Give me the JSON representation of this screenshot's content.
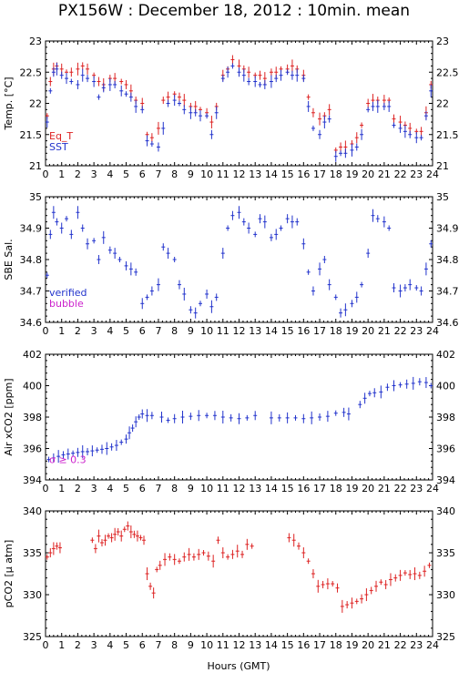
{
  "title": "PX156W : December 18, 2012 : 10min. mean",
  "xlabel": "Hours (GMT)",
  "colors": {
    "red": "#dd2222",
    "blue": "#2233cc",
    "magenta": "#cc22cc",
    "frame": "#000000"
  },
  "chart_data": [
    {
      "type": "scatter",
      "ylabel": "Temp. [°C]",
      "xlim": [
        0,
        24
      ],
      "ylim": [
        21,
        23
      ],
      "yticks": [
        21,
        21.5,
        22,
        22.5,
        23
      ],
      "ytick_labels": [
        "21",
        "21.5",
        "22",
        "22.5",
        "23"
      ],
      "xticks": [
        0,
        1,
        2,
        3,
        4,
        5,
        6,
        7,
        8,
        9,
        10,
        11,
        12,
        13,
        14,
        15,
        16,
        17,
        18,
        19,
        20,
        21,
        22,
        23,
        24
      ],
      "legend": {
        "placement": "bottom-left",
        "entries": [
          "Eq_T",
          "SST"
        ]
      },
      "series": [
        {
          "name": "Eq_T",
          "color": "red",
          "x": [
            0.1,
            0.3,
            0.5,
            0.7,
            1.0,
            1.3,
            1.6,
            2.0,
            2.3,
            2.6,
            3.0,
            3.3,
            3.6,
            4.0,
            4.3,
            4.7,
            5.0,
            5.3,
            5.6,
            6.0,
            6.3,
            6.6,
            7.0,
            7.3,
            7.6,
            8.0,
            8.3,
            8.6,
            9.0,
            9.3,
            9.6,
            10.0,
            10.3,
            10.6,
            11.0,
            11.3,
            11.6,
            12.0,
            12.3,
            12.6,
            13.0,
            13.3,
            13.6,
            14.0,
            14.3,
            14.6,
            15.0,
            15.3,
            15.6,
            16.0,
            16.3,
            16.6,
            17.0,
            17.3,
            17.6,
            18.0,
            18.3,
            18.6,
            19.0,
            19.3,
            19.6,
            20.0,
            20.3,
            20.6,
            21.0,
            21.3,
            21.6,
            22.0,
            22.3,
            22.6,
            23.0,
            23.3,
            23.6,
            23.9
          ],
          "y": [
            21.8,
            22.35,
            22.55,
            22.6,
            22.55,
            22.5,
            22.5,
            22.55,
            22.6,
            22.55,
            22.45,
            22.35,
            22.3,
            22.4,
            22.4,
            22.35,
            22.3,
            22.2,
            22.05,
            22.0,
            21.5,
            21.45,
            21.6,
            22.05,
            22.1,
            22.15,
            22.1,
            22.05,
            21.95,
            21.95,
            21.9,
            21.85,
            21.7,
            21.95,
            22.45,
            22.55,
            22.7,
            22.6,
            22.55,
            22.5,
            22.45,
            22.45,
            22.4,
            22.5,
            22.5,
            22.55,
            22.55,
            22.6,
            22.55,
            22.45,
            22.1,
            21.85,
            21.75,
            21.8,
            21.9,
            21.25,
            21.3,
            21.3,
            21.35,
            21.45,
            21.65,
            22.0,
            22.05,
            22.05,
            22.05,
            22.05,
            21.75,
            21.7,
            21.65,
            21.6,
            21.55,
            21.55,
            21.85,
            22.3
          ]
        },
        {
          "name": "SST",
          "color": "blue",
          "x": [
            0.1,
            0.3,
            0.5,
            0.7,
            1.0,
            1.3,
            1.6,
            2.0,
            2.3,
            2.6,
            3.0,
            3.3,
            3.6,
            4.0,
            4.3,
            4.7,
            5.0,
            5.3,
            5.6,
            6.0,
            6.3,
            6.6,
            7.0,
            7.3,
            7.6,
            8.0,
            8.3,
            8.6,
            9.0,
            9.3,
            9.6,
            10.0,
            10.3,
            10.6,
            11.0,
            11.3,
            11.6,
            12.0,
            12.3,
            12.6,
            13.0,
            13.3,
            13.6,
            14.0,
            14.3,
            14.6,
            15.0,
            15.3,
            15.6,
            16.0,
            16.3,
            16.6,
            17.0,
            17.3,
            17.6,
            18.0,
            18.3,
            18.6,
            19.0,
            19.3,
            19.6,
            20.0,
            20.3,
            20.6,
            21.0,
            21.3,
            21.6,
            22.0,
            22.3,
            22.6,
            23.0,
            23.3,
            23.6,
            23.9
          ],
          "y": [
            21.7,
            22.2,
            22.5,
            22.55,
            22.45,
            22.4,
            22.35,
            22.3,
            22.45,
            22.4,
            22.35,
            22.1,
            22.25,
            22.3,
            22.3,
            22.2,
            22.15,
            22.1,
            21.95,
            21.9,
            21.4,
            21.35,
            21.3,
            21.6,
            22.0,
            22.05,
            22.0,
            21.9,
            21.85,
            21.85,
            21.8,
            21.8,
            21.5,
            21.85,
            22.4,
            22.5,
            22.6,
            22.5,
            22.45,
            22.35,
            22.35,
            22.3,
            22.3,
            22.35,
            22.4,
            22.45,
            22.5,
            22.45,
            22.45,
            22.4,
            21.95,
            21.6,
            21.5,
            21.7,
            21.75,
            21.15,
            21.2,
            21.2,
            21.25,
            21.3,
            21.5,
            21.9,
            21.95,
            21.95,
            21.95,
            21.95,
            21.65,
            21.6,
            21.55,
            21.5,
            21.45,
            21.45,
            21.8,
            22.2
          ]
        }
      ]
    },
    {
      "type": "scatter",
      "ylabel": "SBE Sal.",
      "xlim": [
        0,
        24
      ],
      "ylim": [
        34.6,
        35
      ],
      "yticks": [
        34.6,
        34.7,
        34.8,
        34.9,
        35
      ],
      "ytick_labels": [
        "34.6",
        "34.7",
        "34.8",
        "34.9",
        "35"
      ],
      "xticks": [
        0,
        1,
        2,
        3,
        4,
        5,
        6,
        7,
        8,
        9,
        10,
        11,
        12,
        13,
        14,
        15,
        16,
        17,
        18,
        19,
        20,
        21,
        22,
        23,
        24
      ],
      "legend": {
        "placement": "bottom-left",
        "entries": [
          "verified",
          "bubble"
        ]
      },
      "series": [
        {
          "name": "verified",
          "color": "blue",
          "x": [
            0.1,
            0.3,
            0.5,
            0.7,
            1.0,
            1.3,
            1.6,
            2.0,
            2.3,
            2.6,
            3.0,
            3.3,
            3.6,
            4.0,
            4.3,
            4.6,
            5.0,
            5.3,
            5.6,
            6.0,
            6.3,
            6.6,
            7.0,
            7.3,
            7.6,
            8.0,
            8.3,
            8.6,
            9.0,
            9.3,
            9.6,
            10.0,
            10.3,
            10.6,
            11.0,
            11.3,
            11.6,
            12.0,
            12.3,
            12.6,
            13.0,
            13.3,
            13.6,
            14.0,
            14.3,
            14.6,
            15.0,
            15.3,
            15.6,
            16.0,
            16.3,
            16.6,
            17.0,
            17.3,
            17.6,
            18.0,
            18.3,
            18.6,
            19.0,
            19.3,
            19.6,
            20.0,
            20.3,
            20.6,
            21.0,
            21.3,
            21.6,
            22.0,
            22.3,
            22.6,
            23.0,
            23.3,
            23.6,
            23.9
          ],
          "y": [
            34.75,
            34.88,
            34.95,
            34.92,
            34.9,
            34.93,
            34.88,
            34.95,
            34.9,
            34.85,
            34.86,
            34.8,
            34.87,
            34.83,
            34.82,
            34.8,
            34.78,
            34.77,
            34.76,
            34.66,
            34.68,
            34.7,
            34.72,
            34.84,
            34.82,
            34.8,
            34.72,
            34.69,
            34.64,
            34.63,
            34.66,
            34.69,
            34.65,
            34.68,
            34.82,
            34.9,
            34.94,
            34.95,
            34.92,
            34.9,
            34.88,
            34.93,
            34.92,
            34.87,
            34.88,
            34.9,
            34.93,
            34.92,
            34.92,
            34.85,
            34.76,
            34.7,
            34.77,
            34.8,
            34.72,
            34.68,
            34.63,
            34.64,
            34.66,
            34.68,
            34.72,
            34.82,
            34.94,
            34.93,
            34.92,
            34.9,
            34.71,
            34.7,
            34.71,
            34.72,
            34.71,
            34.7,
            34.77,
            34.85
          ]
        },
        {
          "name": "bubble",
          "color": "magenta",
          "x": [],
          "y": []
        }
      ]
    },
    {
      "type": "scatter",
      "ylabel": "Air xCO2 [ppm]",
      "xlim": [
        0,
        24
      ],
      "ylim": [
        394,
        402
      ],
      "yticks": [
        394,
        396,
        398,
        400,
        402
      ],
      "ytick_labels": [
        "394",
        "396",
        "398",
        "400",
        "402"
      ],
      "xticks": [
        0,
        1,
        2,
        3,
        4,
        5,
        6,
        7,
        8,
        9,
        10,
        11,
        12,
        13,
        14,
        15,
        16,
        17,
        18,
        19,
        20,
        21,
        22,
        23,
        24
      ],
      "annotation": "σ ≥ 0.3",
      "series": [
        {
          "name": "",
          "color": "blue",
          "x": [
            0.2,
            0.5,
            0.8,
            1.1,
            1.4,
            1.7,
            2.0,
            2.3,
            2.6,
            2.9,
            3.2,
            3.5,
            3.8,
            4.1,
            4.4,
            4.7,
            5.0,
            5.2,
            5.4,
            5.6,
            5.8,
            6.0,
            6.3,
            6.6,
            7.2,
            7.6,
            8.0,
            8.5,
            9.0,
            9.5,
            10.0,
            10.5,
            11.0,
            11.5,
            12.0,
            12.5,
            13.0,
            14.0,
            14.5,
            15.0,
            15.5,
            16.0,
            16.5,
            17.0,
            17.5,
            18.0,
            18.5,
            18.8,
            19.5,
            19.8,
            20.1,
            20.4,
            20.8,
            21.2,
            21.6,
            22.0,
            22.4,
            22.8,
            23.2,
            23.6,
            23.9
          ],
          "y": [
            395.3,
            395.4,
            395.5,
            395.6,
            395.65,
            395.7,
            395.75,
            395.8,
            395.8,
            395.85,
            395.9,
            395.95,
            396.0,
            396.1,
            396.2,
            396.4,
            396.6,
            397.0,
            397.3,
            397.7,
            398.0,
            398.2,
            398.1,
            398.1,
            398.0,
            397.8,
            397.9,
            398.0,
            398.05,
            398.1,
            398.1,
            398.1,
            398.0,
            397.95,
            397.9,
            397.95,
            398.1,
            397.95,
            397.95,
            397.95,
            397.95,
            397.9,
            397.95,
            398.0,
            398.05,
            398.25,
            398.3,
            398.2,
            398.8,
            399.2,
            399.5,
            399.55,
            399.6,
            399.9,
            400.0,
            400.05,
            400.1,
            400.15,
            400.25,
            400.2,
            400.0
          ]
        }
      ]
    },
    {
      "type": "scatter",
      "ylabel": "pCO2 [μ atm]",
      "xlim": [
        0,
        24
      ],
      "ylim": [
        325,
        340
      ],
      "yticks": [
        325,
        330,
        335,
        340
      ],
      "ytick_labels": [
        "325",
        "330",
        "335",
        "340"
      ],
      "xticks": [
        0,
        1,
        2,
        3,
        4,
        5,
        6,
        7,
        8,
        9,
        10,
        11,
        12,
        13,
        14,
        15,
        16,
        17,
        18,
        19,
        20,
        21,
        22,
        23,
        24
      ],
      "series": [
        {
          "name": "",
          "color": "red",
          "x": [
            0.1,
            0.3,
            0.5,
            0.7,
            0.9,
            2.9,
            3.1,
            3.3,
            3.5,
            3.7,
            3.9,
            4.1,
            4.3,
            4.5,
            4.7,
            4.9,
            5.1,
            5.3,
            5.5,
            5.7,
            5.9,
            6.1,
            6.3,
            6.5,
            6.7,
            6.9,
            7.1,
            7.4,
            7.7,
            8.0,
            8.3,
            8.6,
            8.9,
            9.2,
            9.5,
            9.8,
            10.1,
            10.4,
            10.7,
            11.0,
            11.3,
            11.6,
            11.9,
            12.2,
            12.5,
            12.8,
            15.1,
            15.4,
            15.7,
            16.0,
            16.3,
            16.6,
            16.9,
            17.2,
            17.5,
            17.8,
            18.1,
            18.4,
            18.7,
            19.0,
            19.3,
            19.6,
            19.9,
            20.2,
            20.5,
            20.8,
            21.1,
            21.4,
            21.7,
            22.0,
            22.3,
            22.6,
            22.9,
            23.2,
            23.5,
            23.8
          ],
          "y": [
            334.5,
            335.0,
            335.5,
            335.8,
            335.6,
            336.5,
            335.5,
            337.0,
            336.2,
            336.5,
            337.0,
            336.8,
            337.2,
            337.5,
            337.0,
            337.8,
            338.2,
            337.5,
            337.2,
            337.0,
            336.8,
            336.5,
            332.5,
            331.0,
            330.2,
            333.0,
            333.5,
            334.2,
            334.5,
            334.2,
            334.0,
            334.5,
            334.8,
            334.5,
            334.8,
            335.0,
            334.6,
            334.0,
            336.5,
            335.0,
            334.5,
            334.8,
            335.2,
            334.8,
            336.0,
            335.8,
            336.8,
            336.5,
            335.8,
            335.0,
            334.0,
            332.5,
            331.0,
            331.2,
            331.3,
            331.3,
            330.8,
            328.6,
            328.8,
            329.0,
            329.2,
            329.5,
            330.0,
            330.5,
            331.0,
            331.5,
            331.2,
            331.8,
            332.0,
            332.3,
            332.6,
            332.4,
            332.5,
            332.3,
            332.8,
            333.5
          ]
        }
      ]
    }
  ]
}
